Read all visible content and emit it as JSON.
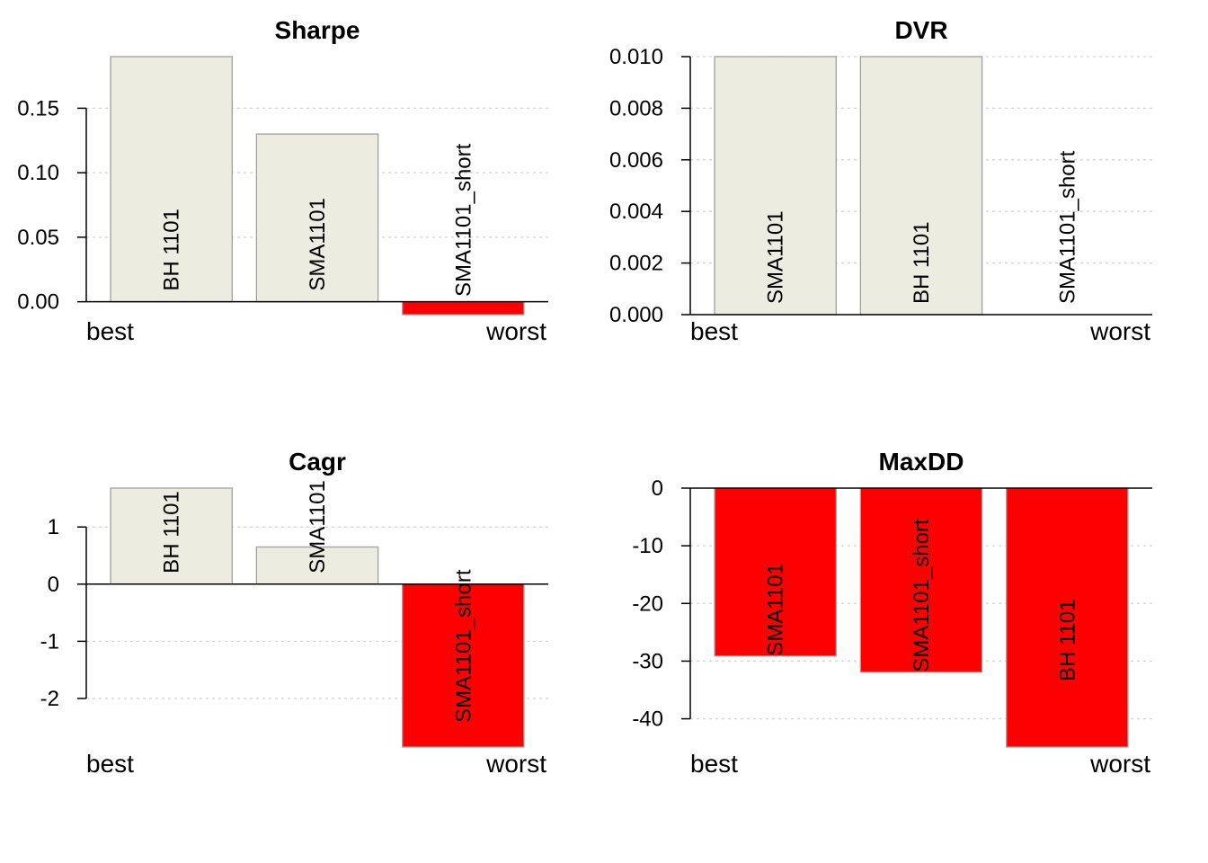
{
  "colors": {
    "positive_fill": "#ECECE0",
    "negative_fill": "#FF0000",
    "bar_stroke": "#A0A0A0",
    "grid": "#D3D3D3",
    "axis": "#000000",
    "text": "#000000"
  },
  "chart_data": [
    {
      "type": "bar",
      "title": "Sharpe",
      "categories": [
        "BH 1101",
        "SMA1101",
        "SMA1101_short"
      ],
      "values": [
        0.19,
        0.13,
        -0.01
      ],
      "yticks": [
        "0.00",
        "0.05",
        "0.10",
        "0.15"
      ],
      "ylim": [
        -0.01,
        0.19
      ],
      "left_label": "best",
      "right_label": "worst",
      "grid": true
    },
    {
      "type": "bar",
      "title": "DVR",
      "categories": [
        "SMA1101",
        "BH 1101",
        "SMA1101_short"
      ],
      "values": [
        0.01,
        0.01,
        0.0
      ],
      "yticks": [
        "0.000",
        "0.002",
        "0.004",
        "0.006",
        "0.008",
        "0.010"
      ],
      "ylim": [
        0.0,
        0.01
      ],
      "left_label": "best",
      "right_label": "worst",
      "grid": true
    },
    {
      "type": "bar",
      "title": "Cagr",
      "categories": [
        "BH 1101",
        "SMA1101",
        "SMA1101_short"
      ],
      "values": [
        1.68,
        0.65,
        -2.85
      ],
      "yticks": [
        "-2",
        "-1",
        "0",
        "1"
      ],
      "ylim": [
        -2.85,
        1.68
      ],
      "left_label": "best",
      "right_label": "worst",
      "grid": true
    },
    {
      "type": "bar",
      "title": "MaxDD",
      "categories": [
        "SMA1101",
        "SMA1101_short",
        "BH 1101"
      ],
      "values": [
        -29.1,
        -31.9,
        -44.9
      ],
      "yticks": [
        "-40",
        "-30",
        "-20",
        "-10",
        "0"
      ],
      "ylim": [
        -44.9,
        0
      ],
      "left_label": "best",
      "right_label": "worst",
      "grid": true
    }
  ]
}
